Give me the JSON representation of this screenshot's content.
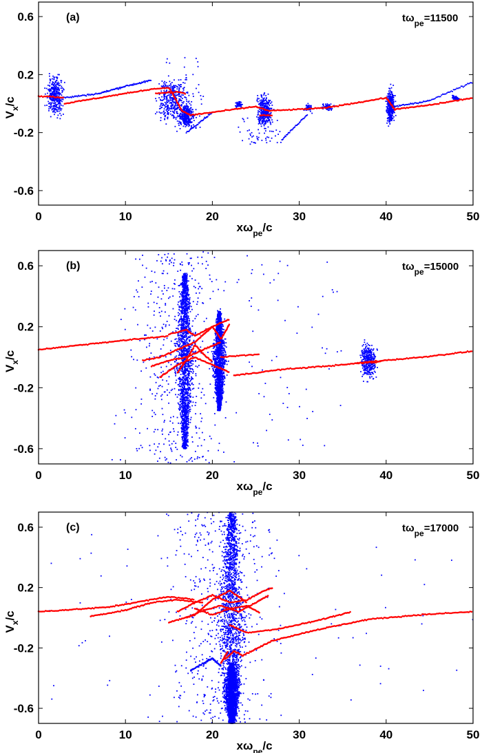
{
  "colors": {
    "particles": "#0000ff",
    "tracked": "#ff0000",
    "axes": "#000000"
  },
  "chart_data": [
    {
      "type": "scatter",
      "panel_label": "(a)",
      "time_label": {
        "prefix": "tω",
        "sub": "pe",
        "value": "=11500"
      },
      "xlabel": {
        "main": "xω",
        "sub": "pe",
        "tail": "/c"
      },
      "ylabel": {
        "main": "V",
        "sub": "x",
        "tail": "/c"
      },
      "xlim": [
        0,
        50
      ],
      "ylim": [
        -0.7,
        0.7
      ],
      "xticks": [
        "0",
        "10",
        "20",
        "30",
        "40",
        "50"
      ],
      "yticks": [
        "0.6",
        "0.2",
        "-0.2",
        "-0.6"
      ],
      "blue_clusters": [
        {
          "x": [
            0.8,
            3.0
          ],
          "y": [
            -0.1,
            0.2
          ],
          "density": "dense"
        },
        {
          "x": [
            13.5,
            17.5
          ],
          "y": [
            -0.15,
            0.2
          ],
          "density": "dense"
        },
        {
          "x": [
            14,
            19
          ],
          "y": [
            -0.2,
            0.32
          ],
          "density": "sparse"
        },
        {
          "x": [
            16,
            18
          ],
          "y": [
            -0.17,
            0.0
          ],
          "density": "dense"
        },
        {
          "x": [
            22.5,
            23.5
          ],
          "y": [
            -0.03,
            0.02
          ],
          "density": "light"
        },
        {
          "x": [
            25,
            27
          ],
          "y": [
            -0.17,
            0.08
          ],
          "density": "dense"
        },
        {
          "x": [
            23,
            28
          ],
          "y": [
            -0.28,
            -0.1
          ],
          "density": "sparse"
        },
        {
          "x": [
            30.5,
            31.5
          ],
          "y": [
            -0.06,
            0.0
          ],
          "density": "light"
        },
        {
          "x": [
            32.5,
            34
          ],
          "y": [
            -0.05,
            0.0
          ],
          "density": "light"
        },
        {
          "x": [
            40,
            41
          ],
          "y": [
            -0.15,
            0.12
          ],
          "density": "dense"
        },
        {
          "x": [
            47.5,
            48.5
          ],
          "y": [
            0.02,
            0.06
          ],
          "density": "light"
        }
      ],
      "blue_tracks": [
        [
          [
            3,
            0.04
          ],
          [
            7,
            0.07
          ],
          [
            10,
            0.12
          ],
          [
            13,
            0.16
          ]
        ],
        [
          [
            41,
            -0.02
          ],
          [
            45,
            0.02
          ],
          [
            50,
            0.15
          ]
        ],
        [
          [
            17,
            -0.2
          ],
          [
            20,
            -0.06
          ]
        ],
        [
          [
            28,
            -0.25
          ],
          [
            31,
            -0.07
          ]
        ]
      ],
      "red_tracks": [
        [
          [
            0,
            0.05
          ],
          [
            1,
            0.05
          ],
          [
            3,
            0.04
          ]
        ],
        [
          [
            3,
            0.0
          ],
          [
            8,
            0.05
          ],
          [
            13,
            0.1
          ],
          [
            15,
            0.11
          ],
          [
            15.5,
            0.06
          ],
          [
            16.5,
            -0.05
          ],
          [
            17.5,
            -0.08
          ],
          [
            20,
            -0.06
          ],
          [
            25,
            -0.02
          ],
          [
            26.5,
            -0.05
          ],
          [
            33,
            -0.03
          ],
          [
            40,
            0.04
          ],
          [
            41,
            -0.04
          ],
          [
            45,
            -0.01
          ],
          [
            50,
            0.04
          ]
        ],
        [
          [
            13.5,
            0.07
          ],
          [
            16,
            0.08
          ],
          [
            17,
            0.07
          ]
        ],
        [
          [
            25.5,
            -0.08
          ],
          [
            27,
            -0.08
          ]
        ]
      ]
    },
    {
      "type": "scatter",
      "panel_label": "(b)",
      "time_label": {
        "prefix": "tω",
        "sub": "pe",
        "value": "=15000"
      },
      "xlabel": {
        "main": "xω",
        "sub": "pe",
        "tail": "/c"
      },
      "ylabel": {
        "main": "V",
        "sub": "x",
        "tail": "/c"
      },
      "xlim": [
        0,
        50
      ],
      "ylim": [
        -0.7,
        0.7
      ],
      "xticks": [
        "0",
        "10",
        "20",
        "30",
        "40",
        "50"
      ],
      "yticks": [
        "0.6",
        "0.2",
        "-0.2",
        "-0.6"
      ],
      "blue_clusters": [
        {
          "x": [
            15.5,
            18.2
          ],
          "y": [
            -0.6,
            0.55
          ],
          "density": "spindle"
        },
        {
          "x": [
            19.8,
            21.8
          ],
          "y": [
            -0.35,
            0.3
          ],
          "density": "spindle"
        },
        {
          "x": [
            8,
            24
          ],
          "y": [
            -0.7,
            0.7
          ],
          "density": "halo"
        },
        {
          "x": [
            24,
            35
          ],
          "y": [
            -0.6,
            0.7
          ],
          "density": "sparse"
        },
        {
          "x": [
            37,
            39
          ],
          "y": [
            -0.15,
            0.1
          ],
          "density": "dense"
        }
      ],
      "blue_tracks": [],
      "red_tracks": [
        [
          [
            0,
            0.05
          ],
          [
            8,
            0.1
          ],
          [
            15,
            0.14
          ]
        ],
        [
          [
            12,
            -0.02
          ],
          [
            14,
            0.0
          ],
          [
            16,
            0.05
          ],
          [
            18,
            0.1
          ],
          [
            20,
            0.2
          ],
          [
            22,
            0.25
          ]
        ],
        [
          [
            13,
            -0.06
          ],
          [
            15,
            -0.02
          ],
          [
            17,
            0.0
          ],
          [
            19,
            0.05
          ],
          [
            21,
            0.1
          ]
        ],
        [
          [
            14,
            -0.13
          ],
          [
            16,
            -0.05
          ],
          [
            18,
            0.0
          ],
          [
            20,
            -0.05
          ],
          [
            22,
            -0.1
          ]
        ],
        [
          [
            15,
            0.15
          ],
          [
            17,
            0.18
          ],
          [
            18,
            0.14
          ],
          [
            20,
            0.2
          ],
          [
            21,
            0.12
          ],
          [
            22,
            0.22
          ]
        ],
        [
          [
            16,
            -0.1
          ],
          [
            17,
            -0.02
          ],
          [
            18,
            0.08
          ],
          [
            19,
            0.02
          ],
          [
            20,
            -0.03
          ]
        ],
        [
          [
            21,
            0.0
          ],
          [
            23,
            0.01
          ],
          [
            25.5,
            0.02
          ]
        ],
        [
          [
            22.5,
            -0.12
          ],
          [
            28,
            -0.08
          ],
          [
            35,
            -0.05
          ],
          [
            38,
            -0.03
          ],
          [
            44,
            0.0
          ],
          [
            50,
            0.04
          ]
        ],
        [
          [
            36.5,
            -0.04
          ],
          [
            39.5,
            -0.03
          ]
        ]
      ]
    },
    {
      "type": "scatter",
      "panel_label": "(c)",
      "time_label": {
        "prefix": "tω",
        "sub": "pe",
        "value": "=17000"
      },
      "xlabel": {
        "main": "xω",
        "sub": "pe",
        "tail": "/c"
      },
      "ylabel": {
        "main": "V",
        "sub": "x",
        "tail": "/c"
      },
      "xlim": [
        0,
        50
      ],
      "ylim": [
        -0.7,
        0.7
      ],
      "xticks": [
        "0",
        "10",
        "20",
        "30",
        "40",
        "50"
      ],
      "yticks": [
        "0.6",
        "0.2",
        "-0.2",
        "-0.6"
      ],
      "blue_clusters": [
        {
          "x": [
            20,
            24.5
          ],
          "y": [
            -0.7,
            0.7
          ],
          "density": "spindle"
        },
        {
          "x": [
            21,
            23.5
          ],
          "y": [
            -0.7,
            -0.3
          ],
          "density": "spindle"
        },
        {
          "x": [
            12,
            30
          ],
          "y": [
            -0.7,
            0.7
          ],
          "density": "halo"
        },
        {
          "x": [
            0,
            50
          ],
          "y": [
            -0.7,
            0.6
          ],
          "density": "sparse"
        }
      ],
      "blue_tracks": [
        [
          [
            17.5,
            -0.35
          ],
          [
            19,
            -0.3
          ],
          [
            20,
            -0.27
          ],
          [
            21,
            -0.32
          ]
        ]
      ],
      "red_tracks": [
        [
          [
            0,
            0.04
          ],
          [
            8,
            0.07
          ],
          [
            15,
            0.14
          ],
          [
            18,
            0.12
          ]
        ],
        [
          [
            6,
            0.01
          ],
          [
            10,
            0.05
          ],
          [
            13,
            0.1
          ],
          [
            16,
            0.12
          ],
          [
            19,
            0.1
          ]
        ],
        [
          [
            16,
            0.04
          ],
          [
            18,
            0.1
          ],
          [
            20,
            0.15
          ],
          [
            22,
            0.1
          ],
          [
            24,
            0.12
          ],
          [
            26,
            0.18
          ],
          [
            27,
            0.2
          ]
        ],
        [
          [
            17,
            0.0
          ],
          [
            19,
            0.05
          ],
          [
            21,
            0.08
          ],
          [
            23,
            0.04
          ],
          [
            25,
            0.1
          ],
          [
            26.5,
            0.15
          ]
        ],
        [
          [
            15,
            -0.03
          ],
          [
            18,
            0.02
          ],
          [
            20,
            0.12
          ],
          [
            22,
            0.18
          ],
          [
            24,
            0.1
          ]
        ],
        [
          [
            18,
            0.06
          ],
          [
            20,
            0.02
          ],
          [
            22,
            0.06
          ],
          [
            24,
            0.08
          ],
          [
            25.5,
            0.03
          ]
        ],
        [
          [
            22,
            -0.05
          ],
          [
            24,
            -0.1
          ],
          [
            28,
            -0.07
          ],
          [
            32,
            -0.02
          ],
          [
            36,
            0.04
          ]
        ],
        [
          [
            21.5,
            -0.27
          ],
          [
            22.5,
            -0.22
          ],
          [
            23.5,
            -0.25
          ],
          [
            27,
            -0.15
          ],
          [
            32,
            -0.08
          ],
          [
            38,
            -0.01
          ],
          [
            44,
            0.02
          ],
          [
            50,
            0.04
          ]
        ],
        [
          [
            21,
            -0.3
          ],
          [
            21.8,
            -0.22
          ]
        ]
      ]
    }
  ]
}
